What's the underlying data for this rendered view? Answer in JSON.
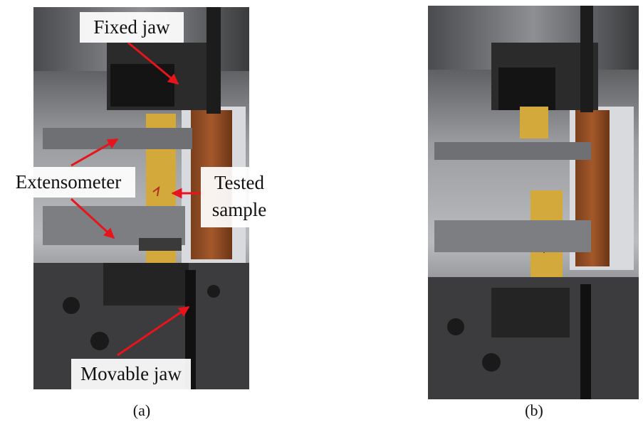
{
  "panel_a": {
    "labels": {
      "fixed_jaw": "Fixed jaw",
      "extensometer": "Extensometer",
      "tested_sample": [
        "Tested",
        "sample"
      ],
      "movable_jaw": "Movable jaw"
    },
    "caption": "(a)"
  },
  "panel_b": {
    "caption": "(b)"
  }
}
